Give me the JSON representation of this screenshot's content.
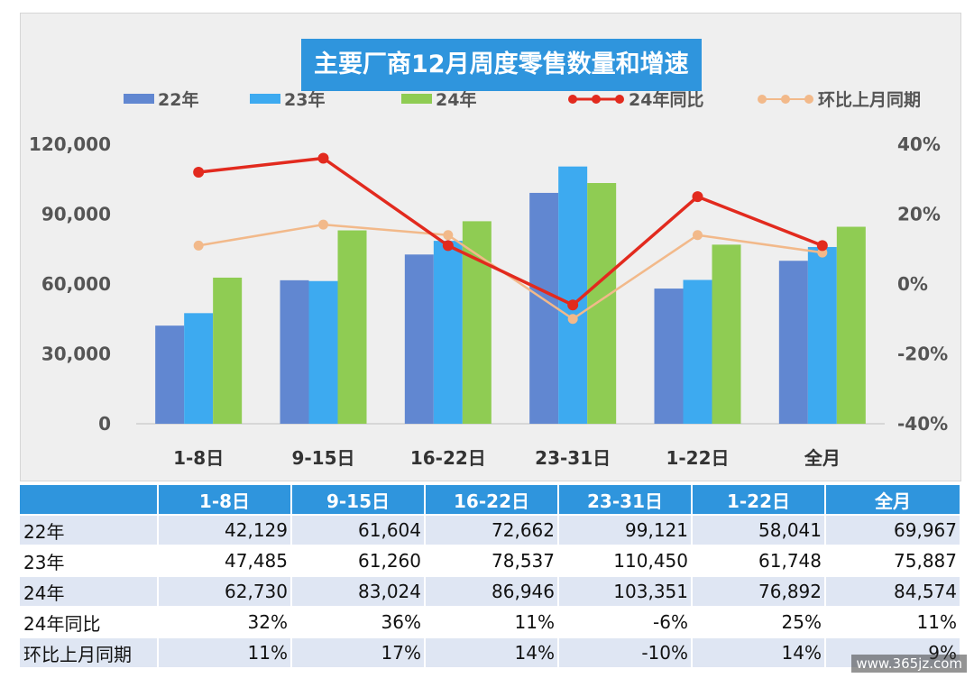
{
  "chart_data": {
    "type": "bar",
    "title": "主要厂商12月周度零售数量和增速",
    "categories": [
      "1-8日",
      "9-15日",
      "16-22日",
      "23-31日",
      "1-22日",
      "全月"
    ],
    "series": [
      {
        "name": "22年",
        "kind": "bar",
        "axis": "left",
        "color": "#6187d1",
        "values": [
          42129,
          61604,
          72662,
          99121,
          58041,
          69967
        ]
      },
      {
        "name": "23年",
        "kind": "bar",
        "axis": "left",
        "color": "#3daaf0",
        "values": [
          47485,
          61260,
          78537,
          110450,
          61748,
          75887
        ]
      },
      {
        "name": "24年",
        "kind": "bar",
        "axis": "left",
        "color": "#8fcc53",
        "values": [
          62730,
          83024,
          86946,
          103351,
          76892,
          84574
        ]
      },
      {
        "name": "24年同比",
        "kind": "line",
        "axis": "right",
        "color": "#e22a1e",
        "values": [
          32,
          36,
          11,
          -6,
          25,
          11
        ]
      },
      {
        "name": "环比上月同期",
        "kind": "line",
        "axis": "right",
        "color": "#f2b98a",
        "values": [
          11,
          17,
          14,
          -10,
          14,
          9
        ]
      }
    ],
    "ylim": [
      0,
      120000
    ],
    "yticks": [
      "0",
      "30,000",
      "60,000",
      "90,000",
      "120,000"
    ],
    "y2lim": [
      -40,
      40
    ],
    "y2ticks": [
      "-40%",
      "-20%",
      "0%",
      "20%",
      "40%"
    ],
    "grid": false,
    "legend": "top"
  },
  "table": {
    "headers": [
      "",
      "1-8日",
      "9-15日",
      "16-22日",
      "23-31日",
      "1-22日",
      "全月"
    ],
    "rows": [
      {
        "label": "22年",
        "cells": [
          "42,129",
          "61,604",
          "72,662",
          "99,121",
          "58,041",
          "69,967"
        ]
      },
      {
        "label": "23年",
        "cells": [
          "47,485",
          "61,260",
          "78,537",
          "110,450",
          "61,748",
          "75,887"
        ]
      },
      {
        "label": "24年",
        "cells": [
          "62,730",
          "83,024",
          "86,946",
          "103,351",
          "76,892",
          "84,574"
        ]
      },
      {
        "label": "24年同比",
        "cells": [
          "32%",
          "36%",
          "11%",
          "-6%",
          "25%",
          "11%"
        ]
      },
      {
        "label": "环比上月同期",
        "cells": [
          "11%",
          "17%",
          "14%",
          "-10%",
          "14%",
          "9%"
        ]
      }
    ]
  },
  "watermark": "www.365jz.com"
}
